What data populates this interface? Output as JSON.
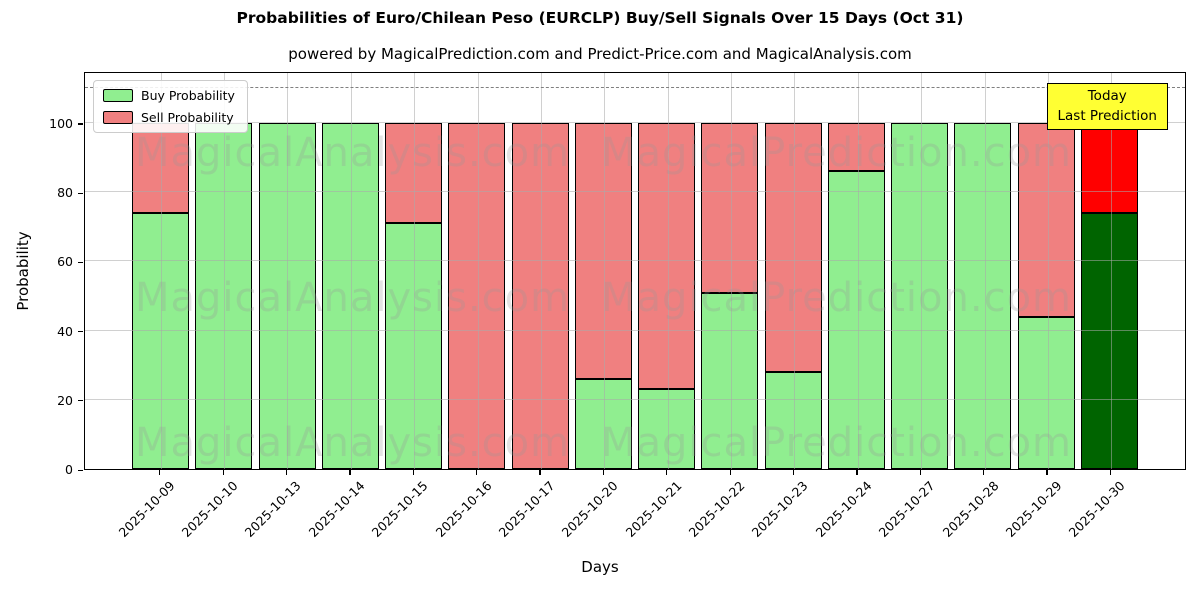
{
  "title": "Probabilities of Euro/Chilean Peso (EURCLP) Buy/Sell Signals Over 15 Days (Oct 31)",
  "subtitle": "powered by MagicalPrediction.com and Predict-Price.com and MagicalAnalysis.com",
  "legend": {
    "buy_label": "Buy Probability",
    "sell_label": "Sell Probability"
  },
  "annotation": {
    "line1": "Today",
    "line2": "Last Prediction",
    "bg_color": "#FFFF33"
  },
  "axes": {
    "ylabel": "Probability",
    "xlabel": "Days",
    "yticks": [
      0,
      20,
      40,
      60,
      80,
      100
    ]
  },
  "watermarks": {
    "left_text": "MagicalAnalysis.com",
    "right_text": "MagicalPrediction.com"
  },
  "colors": {
    "buy": "#90EE90",
    "sell": "#F08080",
    "today_buy": "#006400",
    "today_sell": "#FF0000",
    "grid": "#AAAAAA",
    "dashed_line": "#7F7F7F"
  },
  "chart_data": {
    "type": "bar",
    "stacked": true,
    "title": "Probabilities of Euro/Chilean Peso (EURCLP) Buy/Sell Signals Over 15 Days (Oct 31)",
    "xlabel": "Days",
    "ylabel": "Probability",
    "ylim": [
      0,
      115
    ],
    "dashed_guide_y": 110,
    "grid": true,
    "legend_position": "upper left",
    "categories": [
      "2025-10-09",
      "2025-10-10",
      "2025-10-13",
      "2025-10-14",
      "2025-10-15",
      "2025-10-16",
      "2025-10-17",
      "2025-10-20",
      "2025-10-21",
      "2025-10-22",
      "2025-10-23",
      "2025-10-24",
      "2025-10-27",
      "2025-10-28",
      "2025-10-29",
      "2025-10-30"
    ],
    "series": [
      {
        "name": "Buy Probability",
        "values": [
          74,
          100,
          100,
          100,
          71,
          0,
          0,
          26,
          23,
          51,
          28,
          86,
          100,
          100,
          44,
          74
        ]
      },
      {
        "name": "Sell Probability",
        "values": [
          26,
          0,
          0,
          0,
          29,
          100,
          100,
          74,
          77,
          49,
          72,
          14,
          0,
          0,
          56,
          26
        ]
      }
    ],
    "today_index": 15,
    "today_annotation": "Today Last Prediction"
  }
}
